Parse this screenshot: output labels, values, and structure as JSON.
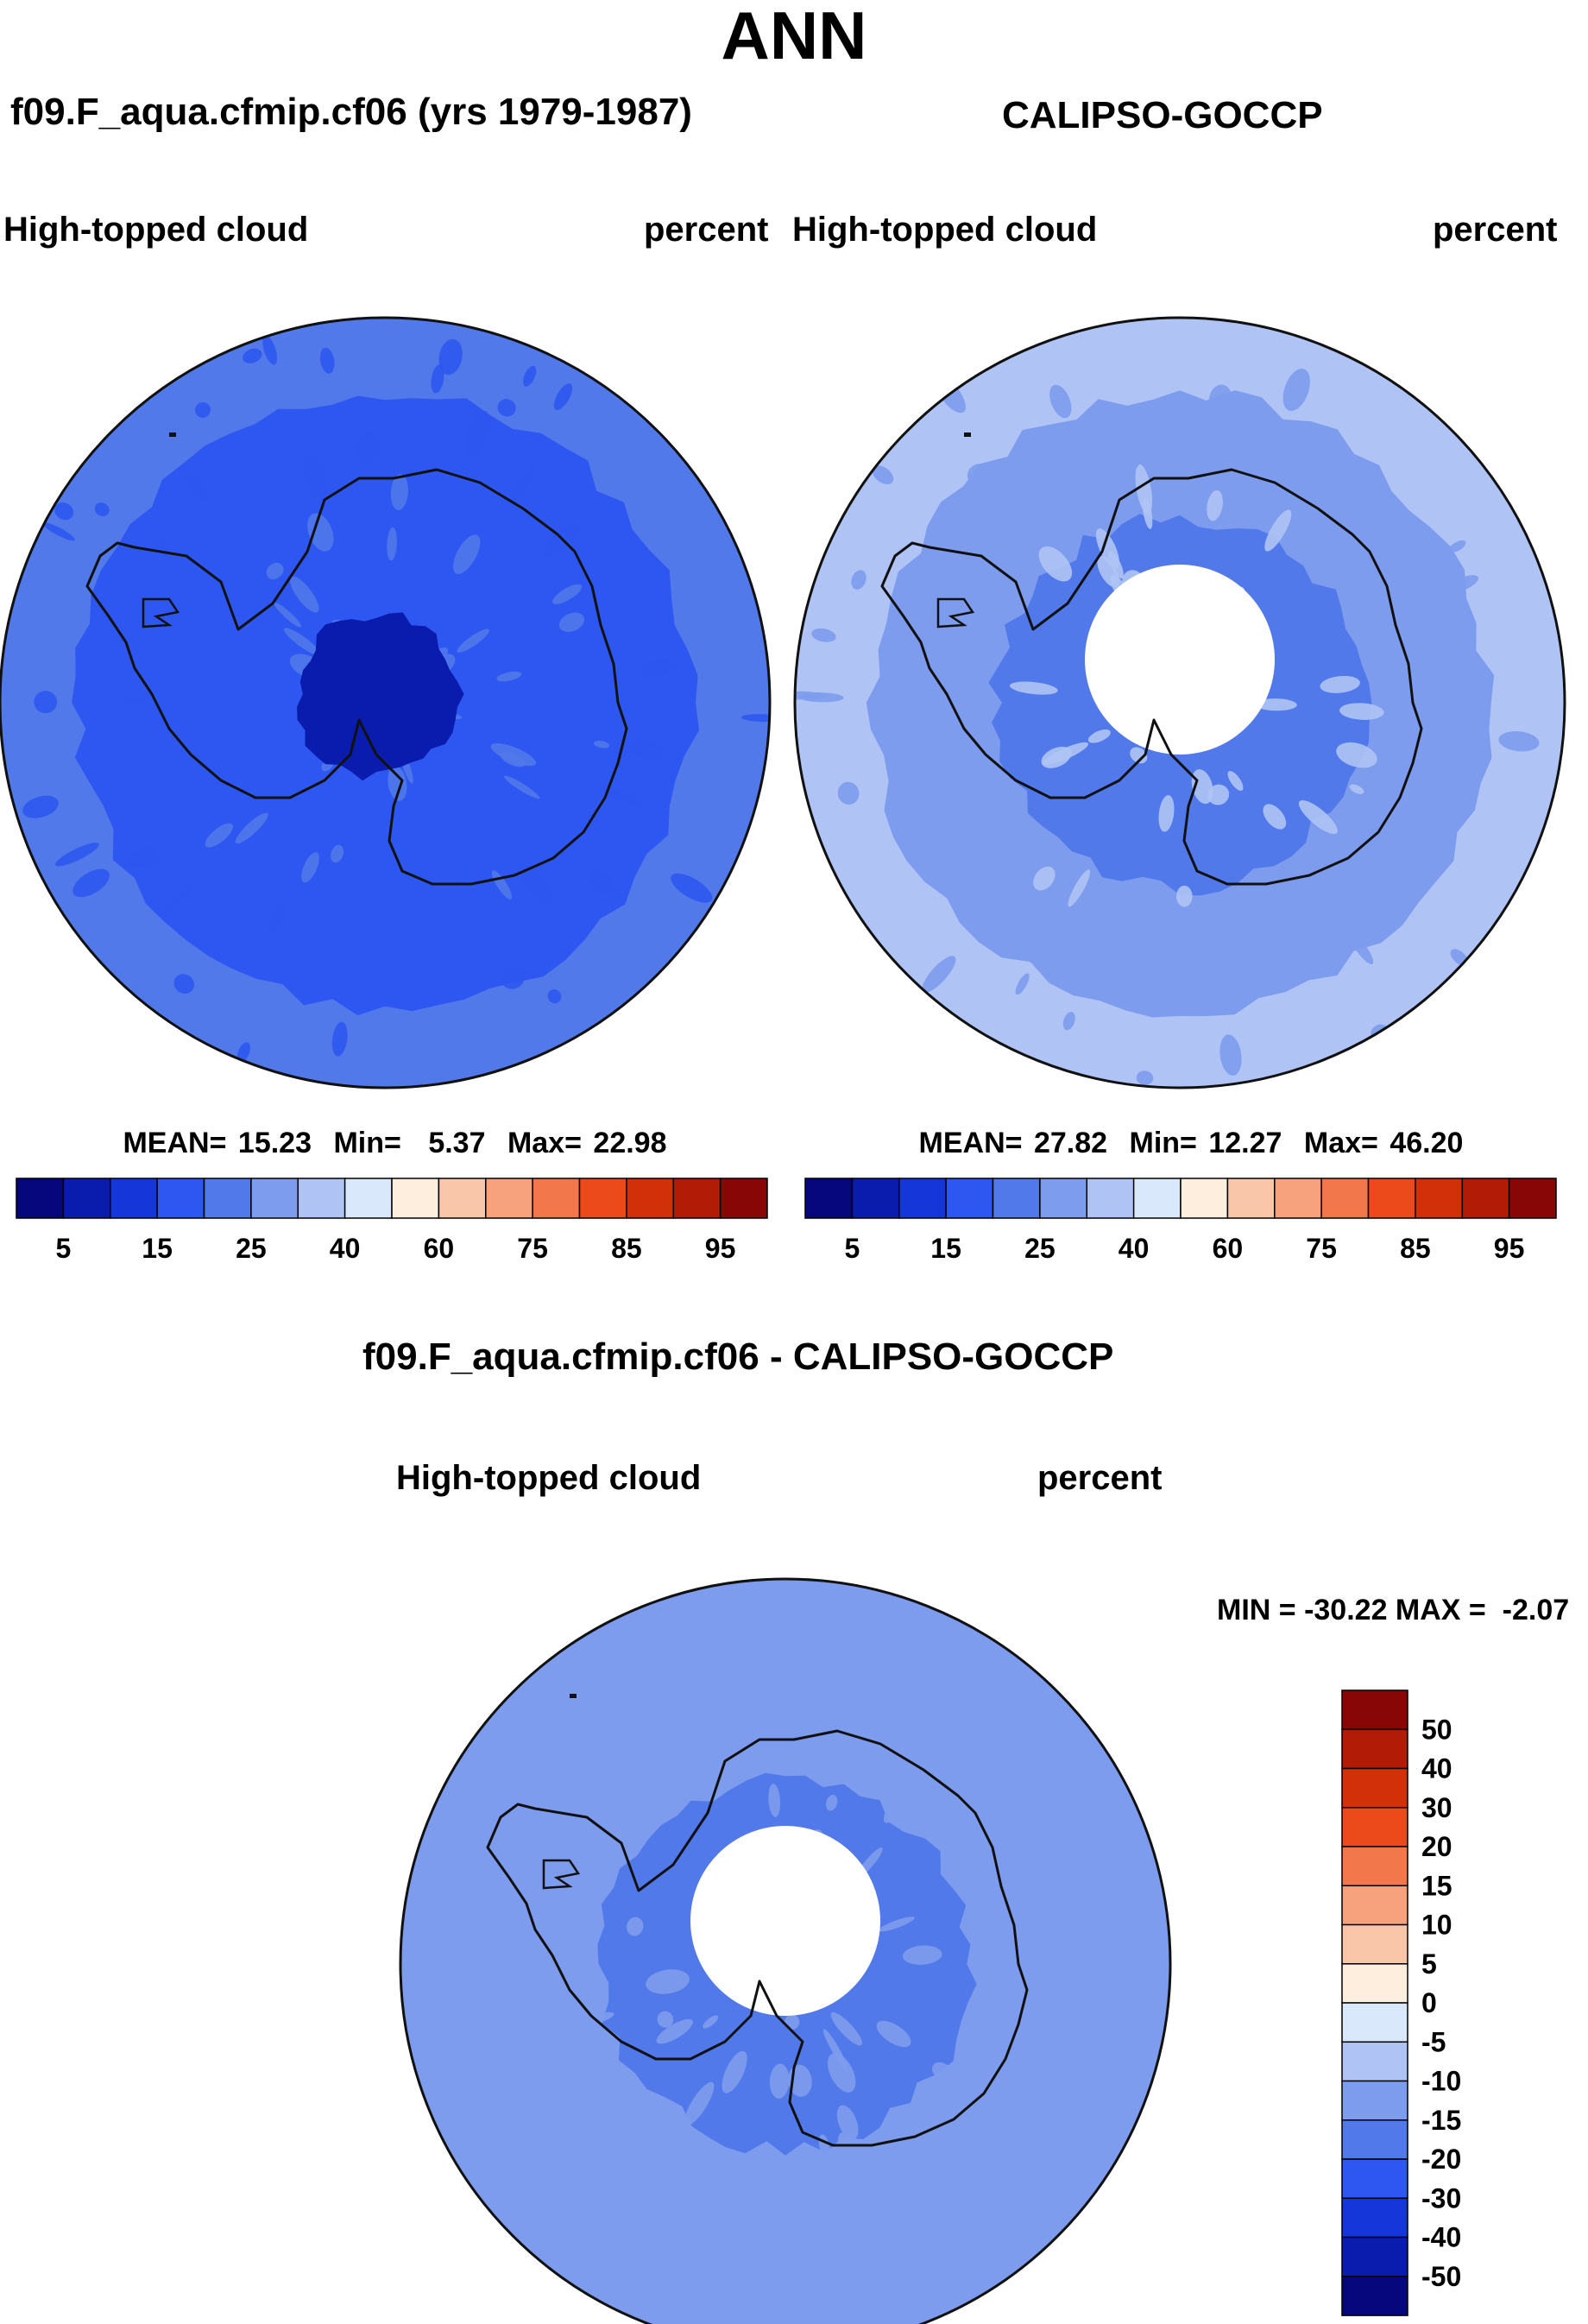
{
  "page_title": "ANN",
  "chart_data": [
    {
      "type": "heatmap",
      "projection": "south-polar-stereographic",
      "case_title": "f09.F_aqua.cfmip.cf06 (yrs 1979-1987)",
      "variable": "High-topped cloud",
      "units": "percent",
      "stats": {
        "mean_label": "MEAN=",
        "mean": "15.23",
        "min_label": "Min=",
        "min": "5.37",
        "max_label": "Max=",
        "max": "22.98"
      },
      "colorbar": {
        "levels": [
          5,
          10,
          15,
          20,
          25,
          30,
          40,
          50,
          60,
          70,
          75,
          80,
          85,
          90,
          95
        ],
        "tick_labels": [
          "5",
          "15",
          "25",
          "40",
          "60",
          "75",
          "85",
          "95"
        ],
        "colors": [
          "#06077c",
          "#0a1cad",
          "#1536d9",
          "#2d57f0",
          "#5179ea",
          "#7e9ced",
          "#afc4f5",
          "#d9e8fb",
          "#feeedd",
          "#f9c6a9",
          "#f7a27d",
          "#f2774a",
          "#ec4a1b",
          "#d23008",
          "#b21b06",
          "#880606"
        ]
      },
      "field": {
        "outer_value": 20.5,
        "mid_value": 17.5,
        "inner_value": 15.5,
        "pole_value": 7.5
      }
    },
    {
      "type": "heatmap",
      "projection": "south-polar-stereographic",
      "case_title": "CALIPSO-GOCCP",
      "variable": "High-topped cloud",
      "units": "percent",
      "stats": {
        "mean_label": "MEAN=",
        "mean": "27.82",
        "min_label": "Min=",
        "min": "12.27",
        "max_label": "Max=",
        "max": "46.20"
      },
      "colorbar": {
        "levels": [
          5,
          10,
          15,
          20,
          25,
          30,
          40,
          50,
          60,
          70,
          75,
          80,
          85,
          90,
          95
        ],
        "tick_labels": [
          "5",
          "15",
          "25",
          "40",
          "60",
          "75",
          "85",
          "95"
        ],
        "colors": [
          "#06077c",
          "#0a1cad",
          "#1536d9",
          "#2d57f0",
          "#5179ea",
          "#7e9ced",
          "#afc4f5",
          "#d9e8fb",
          "#feeedd",
          "#f9c6a9",
          "#f7a27d",
          "#f2774a",
          "#ec4a1b",
          "#d23008",
          "#b21b06",
          "#880606"
        ]
      },
      "field": {
        "outer_value": 33,
        "mid_value": 27,
        "inner_value": 22,
        "pole_missing": true
      }
    },
    {
      "type": "heatmap",
      "projection": "south-polar-stereographic",
      "case_title": "f09.F_aqua.cfmip.cf06 - CALIPSO-GOCCP",
      "variable": "High-topped cloud",
      "units": "percent",
      "stats": {
        "label": "MIN = -30.22 MAX =  -2.07",
        "min": "-30.22",
        "max": "-2.07"
      },
      "colorbar": {
        "levels": [
          -50,
          -40,
          -30,
          -20,
          -15,
          -10,
          -5,
          0,
          5,
          10,
          15,
          20,
          30,
          40,
          50
        ],
        "tick_labels": [
          "50",
          "40",
          "30",
          "20",
          "15",
          "10",
          "5",
          "0",
          "-5",
          "-10",
          "-15",
          "-20",
          "-30",
          "-40",
          "-50"
        ],
        "colors": [
          "#06077c",
          "#0a1cad",
          "#1536d9",
          "#2d57f0",
          "#5179ea",
          "#7e9ced",
          "#afc4f5",
          "#d9e8fb",
          "#feeedd",
          "#f9c6a9",
          "#f7a27d",
          "#f2774a",
          "#ec4a1b",
          "#d23008",
          "#b21b06",
          "#880606"
        ]
      },
      "field": {
        "outer_value": -11,
        "mid_value": -13,
        "inner_value": -18,
        "pole_missing": true
      }
    }
  ]
}
